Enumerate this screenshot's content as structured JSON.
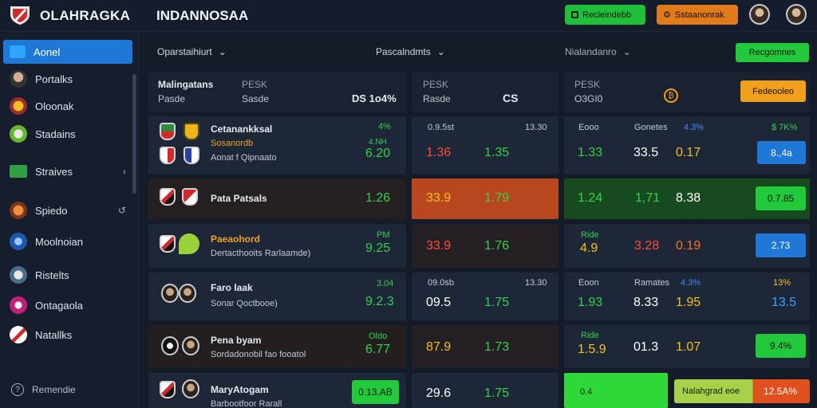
{
  "header": {
    "brand": "OLAHRAGKA",
    "app_title": "INDANNOSAA",
    "btn_green_label": "Recleindebb",
    "btn_orange_label": "Sstaanonrak",
    "colors": {
      "green": "#1fbf3a",
      "orange": "#e07a1b",
      "accent_blue": "#1f78d6"
    }
  },
  "sidebar": {
    "items": [
      {
        "label": "Aonel"
      },
      {
        "label": "Portalks"
      },
      {
        "label": "Oloonak"
      },
      {
        "label": "Stadains"
      },
      {
        "label": "Straives"
      },
      {
        "label": "Spiedo"
      },
      {
        "label": "Moolnoian"
      },
      {
        "label": "Ristelts"
      },
      {
        "label": "Ontagaola"
      },
      {
        "label": "Natallks"
      },
      {
        "label": "Remendie"
      }
    ]
  },
  "columns": {
    "col1": "Oparstaihiurt",
    "col2": "Pascalndmts",
    "col3": "Nialandanro",
    "action_button": "Recgomnes"
  },
  "summary": {
    "a_title": "Malingatans",
    "a_sub": "Pasde",
    "a_code": "PESK",
    "a_code2": "Sasde",
    "a_value": "DS 1o4%",
    "b_label": "PESK",
    "b_sub": "Rasde",
    "b_value": "CS",
    "c_label": "PESK",
    "c_sub": "O3GI0",
    "c_button": "Fedeooleo"
  },
  "rows": [
    {
      "team": "Cetanankksal",
      "subtitle": "Sosanordb",
      "detail": "Aonat f Qipnaato",
      "pct": "4%",
      "mini": "4.NH",
      "main": "6.20",
      "mid_head_left": "0.9.5st",
      "mid_head_right": "13.30",
      "mid_left": "1.36",
      "mid_right": "1.35",
      "r_head_left": "Eooo",
      "r_head_mid": "Gonetes",
      "r_head_pct": "4.3%",
      "r_head_pct2": "$ 7K%",
      "r_a": "1.33",
      "r_b": "33.5",
      "r_c": "0.17",
      "r_badge": "8.,4a"
    },
    {
      "team": "Pata Patsals",
      "main": "1.26",
      "mid_left": "33.9",
      "mid_right": "1.79",
      "r_a": "1.24",
      "r_b": "1,71",
      "r_c": "8.38",
      "r_badge": "0.7.85"
    },
    {
      "team": "Paeaohord",
      "detail": "Dertacthooits Rarlaamde)",
      "mini": "PM",
      "main": "9.25",
      "mid_left": "33.9",
      "mid_right": "1.76",
      "r_head_left": "Ride",
      "r_a": "4.9",
      "r_b": "3.28",
      "r_c": "0.19",
      "r_badge": "2.73"
    },
    {
      "team": "Faro laak",
      "detail": "Sonar Qoctbooe)",
      "mini": "3.04",
      "main": "9.2.3",
      "mid_head_left": "09.0sb",
      "mid_head_right": "13.30",
      "mid_left": "09.5",
      "mid_right": "1.75",
      "r_head_left": "Eoon",
      "r_head_mid": "Ramates",
      "r_head_pct": "4.3%",
      "r_head_pct2": "13%",
      "r_a": "1.93",
      "r_b": "8.33",
      "r_c": "1.95",
      "r_badge": "13.5"
    },
    {
      "team": "Pena byam",
      "detail": "Sordadonobil fao fooatol",
      "mini": "Oldo",
      "main": "6.77",
      "mid_left": "87.9",
      "mid_right": "1.73",
      "r_head_left": "Ride",
      "r_a": "1.5.9",
      "r_b": "01.3",
      "r_c": "1.07",
      "r_badge": "9.4%"
    },
    {
      "team": "MaryAtogam",
      "detail": "Barbootfoor Rarall",
      "main_badge": "0.13.AB",
      "mid_left": "29.6",
      "mid_right": "1.75",
      "r_left": "0.4",
      "r_badge": "Nalahgrad eoe",
      "r_badge2": "12.5A%"
    }
  ]
}
